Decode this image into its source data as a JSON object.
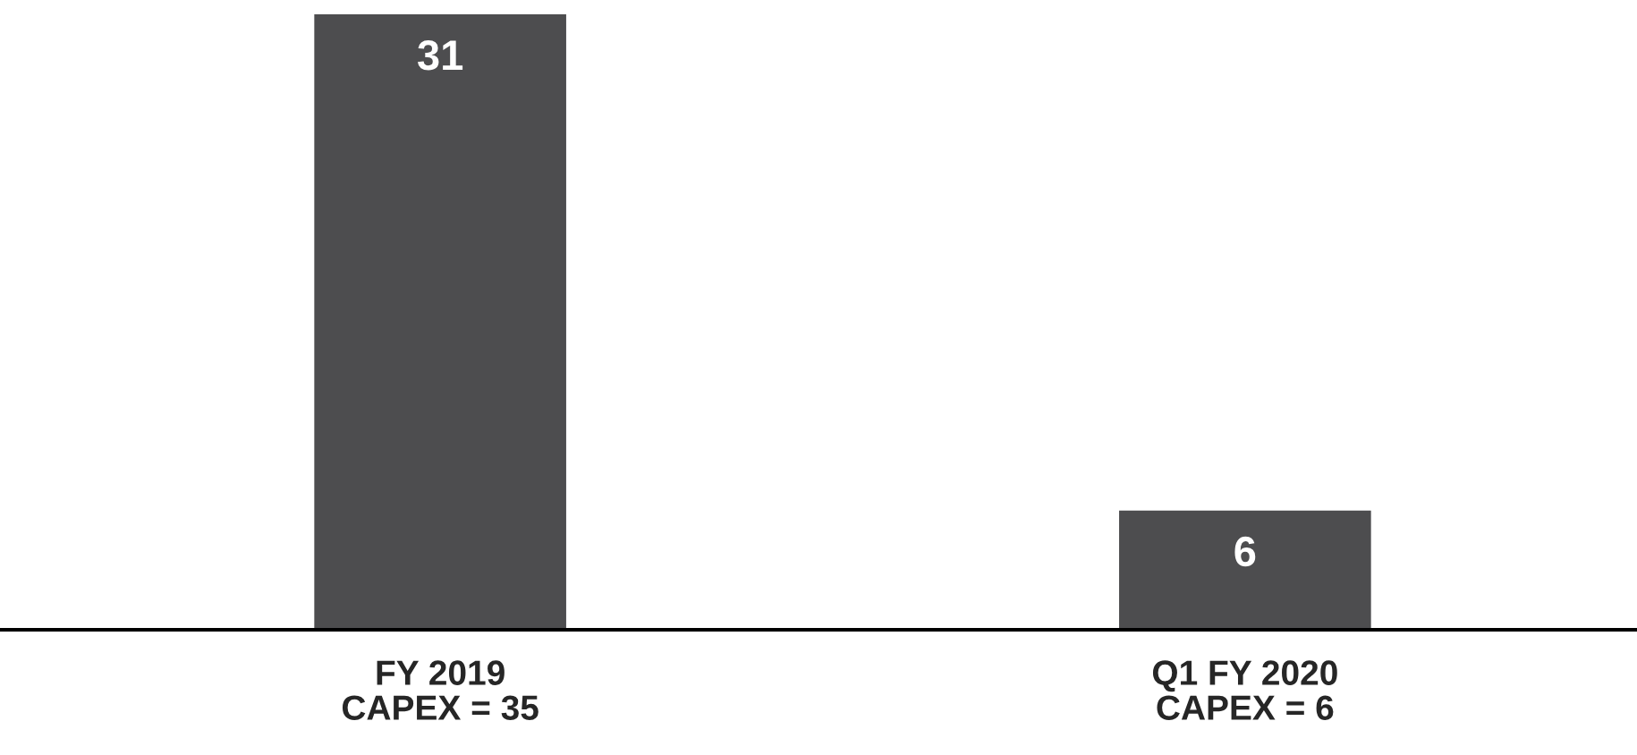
{
  "chart_data": {
    "type": "bar",
    "categories": [
      "FY 2019\nCAPEX = 35",
      "Q1 FY 2020\nCAPEX = 6"
    ],
    "values": [
      31,
      6
    ],
    "color": "#4d4d4f",
    "data_labels": true,
    "grid": false,
    "legend": false,
    "tick_labels": "x"
  }
}
